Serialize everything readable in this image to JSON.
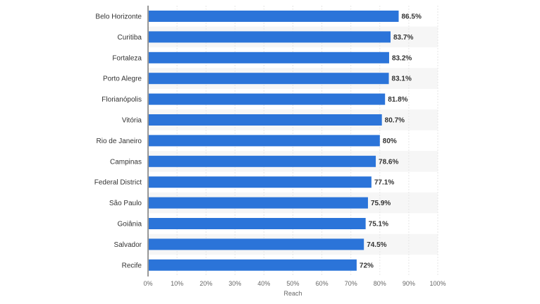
{
  "chart_data": {
    "type": "bar",
    "orientation": "horizontal",
    "categories": [
      "Belo Horizonte",
      "Curitiba",
      "Fortaleza",
      "Porto Alegre",
      "Florianópolis",
      "Vitória",
      "Rio de Janeiro",
      "Campinas",
      "Federal District",
      "São Paulo",
      "Goiânia",
      "Salvador",
      "Recife"
    ],
    "values": [
      86.5,
      83.7,
      83.2,
      83.1,
      81.8,
      80.7,
      80,
      78.6,
      77.1,
      75.9,
      75.1,
      74.5,
      72
    ],
    "value_labels": [
      "86.5%",
      "83.7%",
      "83.2%",
      "83.1%",
      "81.8%",
      "80.7%",
      "80%",
      "78.6%",
      "77.1%",
      "75.9%",
      "75.1%",
      "74.5%",
      "72%"
    ],
    "title": "",
    "xlabel": "Reach",
    "ylabel": "",
    "xlim": [
      0,
      100
    ],
    "x_ticks": [
      0,
      10,
      20,
      30,
      40,
      50,
      60,
      70,
      80,
      90,
      100
    ],
    "x_tick_labels": [
      "0%",
      "10%",
      "20%",
      "30%",
      "40%",
      "50%",
      "60%",
      "70%",
      "80%",
      "90%",
      "100%"
    ],
    "grid": true,
    "alternating_row_bands": true,
    "legend": "none",
    "colors": {
      "bar": "#2b74d9",
      "band": "#f6f6f6",
      "grid": "#e6e6e6",
      "axis": "#333333"
    }
  }
}
